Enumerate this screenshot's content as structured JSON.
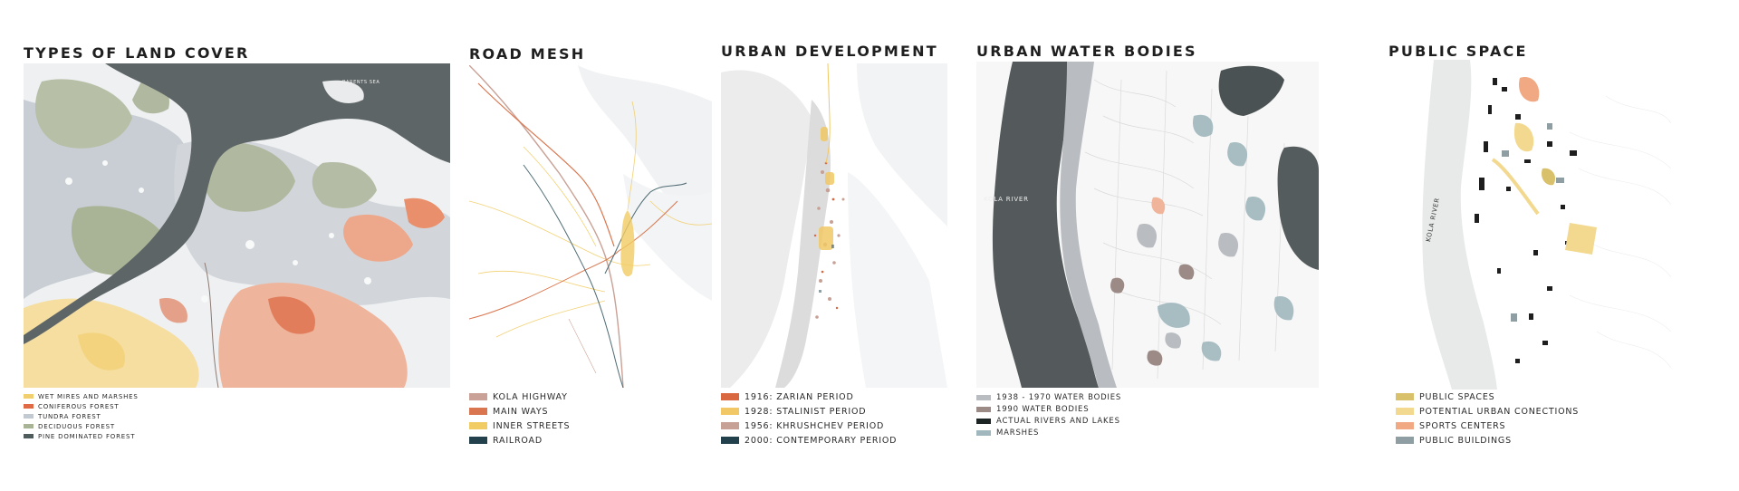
{
  "panels": {
    "land_cover": {
      "title": "TYPES OF LAND COVER",
      "map_label": "BARENTS SEA",
      "legend": [
        {
          "label": "WET MIRES AND MARSHES",
          "color": "#f2cf6e"
        },
        {
          "label": "CONIFEROUS FOREST",
          "color": "#de6b45"
        },
        {
          "label": "TUNDRA FOREST",
          "color": "#c3c9d0"
        },
        {
          "label": "DECIDUOUS FOREST",
          "color": "#a9b396"
        },
        {
          "label": "PINE DOMINATED FOREST",
          "color": "#4e5c5b"
        }
      ]
    },
    "road_mesh": {
      "title": "ROAD MESH",
      "legend": [
        {
          "label": "KOLA HIGHWAY",
          "color": "#c9a196"
        },
        {
          "label": "MAIN WAYS",
          "color": "#d9764f"
        },
        {
          "label": "INNER STREETS",
          "color": "#f1cc63"
        },
        {
          "label": "RAILROAD",
          "color": "#23404d"
        }
      ]
    },
    "urban_development": {
      "title": "URBAN DEVELOPMENT",
      "legend": [
        {
          "label": "1916: ZARIAN PERIOD",
          "color": "#d9673f"
        },
        {
          "label": "1928: STALINIST PERIOD",
          "color": "#f1c865"
        },
        {
          "label": "1956: KHRUSHCHEV PERIOD",
          "color": "#c7a196"
        },
        {
          "label": "2000: CONTEMPORARY PERIOD",
          "color": "#23404d"
        }
      ]
    },
    "water_bodies": {
      "title": "URBAN WATER BODIES",
      "map_label": "KOLA RIVER",
      "legend": [
        {
          "label": "1938 - 1970 WATER BODIES",
          "color": "#b9bcc0"
        },
        {
          "label": "1990 WATER BODIES",
          "color": "#9c8a86"
        },
        {
          "label": "ACTUAL RIVERS AND LAKES",
          "color": "#1d2424"
        },
        {
          "label": "MARSHES",
          "color": "#9fb7bd"
        }
      ]
    },
    "public_space": {
      "title": "PUBLIC SPACE",
      "map_label": "KOLA RIVER",
      "legend": [
        {
          "label": "PUBLIC SPACES",
          "color": "#d9c06b"
        },
        {
          "label": "POTENTIAL URBAN CONECTIONS",
          "color": "#f3d98f"
        },
        {
          "label": "SPORTS CENTERS",
          "color": "#f0a982"
        },
        {
          "label": "PUBLIC BUILDINGS",
          "color": "#8f9ea3"
        }
      ]
    }
  }
}
